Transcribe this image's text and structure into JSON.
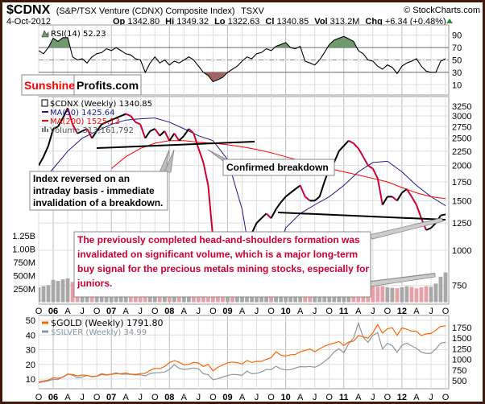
{
  "header": {
    "symbol": "$CDNX",
    "name": "(S&P/TSX Venture (CDNX) Composite Index)",
    "exchange": "TSXV",
    "copyright": "© StockCharts.com",
    "date": "4-Oct-2012",
    "op_label": "Op",
    "op": "1342.80",
    "hi_label": "Hi",
    "hi": "1349.32",
    "lo_label": "Lo",
    "lo": "1322.63",
    "cl_label": "Cl",
    "cl": "1340.85",
    "vol_label": "Vol",
    "vol": "313.2M",
    "chg_label": "Chg",
    "chg": "+6.34 (+0.48%)"
  },
  "logo": {
    "part1": "Sunshine",
    "part2": "Profits.com"
  },
  "colors": {
    "up": "#000000",
    "down": "#cc0033",
    "ma50": "#1a1a8c",
    "ma200": "#ff0000",
    "gold": "#ff6600",
    "silver": "#8a96a0",
    "rsi_over": "#6e9a6e",
    "rsi_under": "#a06464",
    "border": "#3d1a0a"
  },
  "annotations": {
    "reversal": [
      "Index reversed on an",
      "intraday basis - immediate",
      "invalidation of a breakdown."
    ],
    "breakdown": "Confirmed breakdown",
    "conclusion": [
      "The previously completed head-and-shoulders formation was",
      "invalidated on significant volume, which is a major long-term",
      "buy signal for the precious metals mining stocks, especially for",
      "juniors."
    ]
  },
  "chart_data": [
    {
      "type": "line",
      "title": "RSI(14) 52.23",
      "label": "RSI(14) 52.23",
      "ylim": [
        0,
        100
      ],
      "yticks": [
        90,
        70,
        50,
        30,
        10
      ],
      "overbought": 70,
      "oversold": 30,
      "x_start": "Oct 2005",
      "x_step": "month",
      "values": [
        65,
        60,
        70,
        85,
        80,
        86,
        86,
        55,
        50,
        52,
        45,
        55,
        60,
        62,
        68,
        65,
        70,
        65,
        60,
        58,
        52,
        50,
        30,
        45,
        55,
        45,
        50,
        42,
        48,
        45,
        50,
        55,
        50,
        40,
        30,
        25,
        15,
        18,
        22,
        30,
        35,
        40,
        48,
        55,
        52,
        60,
        62,
        68,
        65,
        72,
        75,
        78,
        70,
        68,
        72,
        48,
        45,
        42,
        50,
        62,
        75,
        82,
        85,
        88,
        84,
        80,
        65,
        60,
        50,
        48,
        40,
        35,
        42,
        38,
        28,
        40,
        45,
        48,
        52,
        40,
        32,
        30,
        30,
        48,
        52
      ]
    },
    {
      "type": "line",
      "title": "$CDNX (Weekly) 1340.85",
      "scale": "log",
      "ylim": [
        700,
        3400
      ],
      "yticks": [
        3250,
        3000,
        2750,
        2500,
        2250,
        2000,
        1750,
        1500,
        1250,
        1000,
        750
      ],
      "x_labels": [
        "O",
        "06",
        "A",
        "J",
        "O",
        "07",
        "A",
        "J",
        "O",
        "08",
        "A",
        "J",
        "O",
        "09",
        "A",
        "J",
        "O",
        "10",
        "A",
        "J",
        "O",
        "11",
        "A",
        "J",
        "O",
        "12",
        "A",
        "J",
        "O"
      ],
      "x_start": "Oct 2005",
      "x_step": "month",
      "series": [
        {
          "name": "$CDNX (Weekly) 1340.85",
          "values": [
            2000,
            2150,
            2350,
            2700,
            2750,
            2950,
            3200,
            2800,
            2600,
            2650,
            2700,
            2500,
            2650,
            2800,
            2850,
            2900,
            2950,
            3000,
            3050,
            3000,
            2850,
            2800,
            2500,
            2650,
            2700,
            2550,
            2650,
            2450,
            2600,
            2450,
            2550,
            2700,
            2600,
            2300,
            2050,
            1700,
            1100,
            900,
            800,
            850,
            830,
            900,
            1000,
            1150,
            1150,
            1250,
            1300,
            1350,
            1300,
            1400,
            1480,
            1550,
            1600,
            1650,
            1700,
            1550,
            1500,
            1500,
            1550,
            1750,
            1950,
            2050,
            2250,
            2350,
            2450,
            2400,
            2300,
            2150,
            2000,
            1950,
            1800,
            1450,
            1550,
            1550,
            1500,
            1600,
            1650,
            1550,
            1450,
            1300,
            1180,
            1200,
            1250,
            1330,
            1341
          ]
        },
        {
          "name": "MA(50) 1425.64",
          "step": "quarter",
          "values": [
            1700,
            1950,
            2250,
            2500,
            2650,
            2800,
            2900,
            2930,
            2950,
            2850,
            2700,
            2550,
            2450,
            2100,
            1400,
            700,
            850,
            1200,
            1350,
            1450,
            1550,
            1700,
            1900,
            2050,
            2070,
            1900,
            1700,
            1550,
            1440
          ]
        },
        {
          "name": "MA(200) 1525.13",
          "step": "quarter",
          "values": [
            null,
            null,
            null,
            null,
            null,
            1950,
            2150,
            2300,
            2400,
            2450,
            2450,
            2420,
            2400,
            2370,
            2330,
            2280,
            2220,
            2150,
            2080,
            2000,
            1950,
            1900,
            1850,
            1800,
            1750,
            1670,
            1600,
            1550,
            1525
          ]
        }
      ],
      "trendlines": [
        {
          "name": "neckline-2007-2008",
          "from": [
            "Apr 2007",
            2370
          ],
          "to": [
            "Jun 2009",
            2430
          ]
        },
        {
          "name": "neckline-2010-2012",
          "from": [
            "Jul 2010",
            1370
          ],
          "to": [
            "Oct 2012",
            1285
          ]
        }
      ]
    },
    {
      "type": "bar",
      "title": "Volume 313,161,792",
      "unit": "M",
      "yticks": [
        1250,
        1000,
        750,
        500,
        250
      ],
      "ytick_labels": [
        "1.25B",
        "1.00B",
        "750M",
        "500M",
        "250M"
      ],
      "values": [
        280,
        300,
        320,
        420,
        400,
        430,
        450,
        380,
        330,
        300,
        300,
        320,
        330,
        360,
        350,
        380,
        400,
        380,
        360,
        340,
        330,
        320,
        300,
        280,
        300,
        290,
        280,
        300,
        310,
        300,
        290,
        310,
        300,
        270,
        250,
        260,
        330,
        250,
        220,
        230,
        240,
        260,
        290,
        330,
        310,
        290,
        300,
        320,
        310,
        330,
        350,
        360,
        340,
        330,
        350,
        300,
        280,
        270,
        290,
        330,
        380,
        400,
        430,
        440,
        460,
        430,
        380,
        350,
        320,
        310,
        300,
        300,
        280,
        270,
        260,
        280,
        300,
        290,
        260,
        280,
        300,
        290,
        350,
        480,
        560
      ]
    },
    {
      "type": "line",
      "title": "$GOLD / $SILVER",
      "x_start": "Oct 2005",
      "x_step": "month",
      "silver_axis": {
        "side": "left",
        "ticks": [
          50,
          40,
          30,
          20,
          10
        ]
      },
      "gold_axis": {
        "side": "right",
        "ticks": [
          1750,
          1500,
          1250,
          1000,
          750,
          500
        ]
      },
      "series": [
        {
          "name": "$GOLD (Weekly) 1791.80",
          "values": [
            470,
            495,
            513,
            568,
            556,
            582,
            654,
            643,
            613,
            633,
            623,
            599,
            604,
            646,
            632,
            650,
            665,
            662,
            680,
            655,
            650,
            665,
            672,
            743,
            789,
            783,
            834,
            923,
            971,
            933,
            871,
            885,
            930,
            915,
            833,
            884,
            730,
            815,
            870,
            920,
            940,
            925,
            890,
            975,
            930,
            955,
            955,
            1000,
            1040,
            1180,
            1100,
            1080,
            1110,
            1115,
            1180,
            1210,
            1245,
            1180,
            1250,
            1310,
            1355,
            1385,
            1420,
            1330,
            1410,
            1430,
            1560,
            1530,
            1500,
            1625,
            1820,
            1620,
            1720,
            1745,
            1565,
            1740,
            1710,
            1665,
            1665,
            1560,
            1600,
            1610,
            1690,
            1775,
            1792
          ]
        },
        {
          "name": "$SILVER (Weekly) 34.99",
          "values": [
            7.6,
            8.0,
            8.8,
            9.8,
            9.6,
            11.5,
            13.5,
            12.5,
            10.8,
            11.3,
            12.5,
            11.5,
            12.0,
            13.8,
            12.9,
            13.4,
            14.2,
            13.3,
            13.4,
            13.2,
            12.8,
            12.9,
            12.2,
            13.7,
            14.3,
            14.4,
            14.8,
            16.5,
            19.8,
            17.3,
            16.5,
            16.9,
            17.5,
            17.0,
            13.6,
            12.9,
            9.5,
            10.2,
            11.3,
            12.5,
            13.2,
            13.0,
            12.5,
            15.5,
            13.6,
            13.9,
            14.8,
            16.6,
            16.4,
            18.7,
            16.9,
            16.2,
            16.4,
            17.5,
            18.5,
            18.3,
            18.6,
            18.0,
            19.5,
            22.0,
            24.5,
            28.5,
            30.6,
            27.9,
            34.0,
            37.9,
            48.0,
            38.5,
            35.0,
            39.8,
            41.5,
            30.4,
            34.4,
            32.7,
            28.2,
            33.0,
            34.5,
            32.5,
            31.0,
            28.3,
            27.5,
            27.5,
            30.5,
            34.5,
            34.99
          ]
        }
      ]
    }
  ]
}
